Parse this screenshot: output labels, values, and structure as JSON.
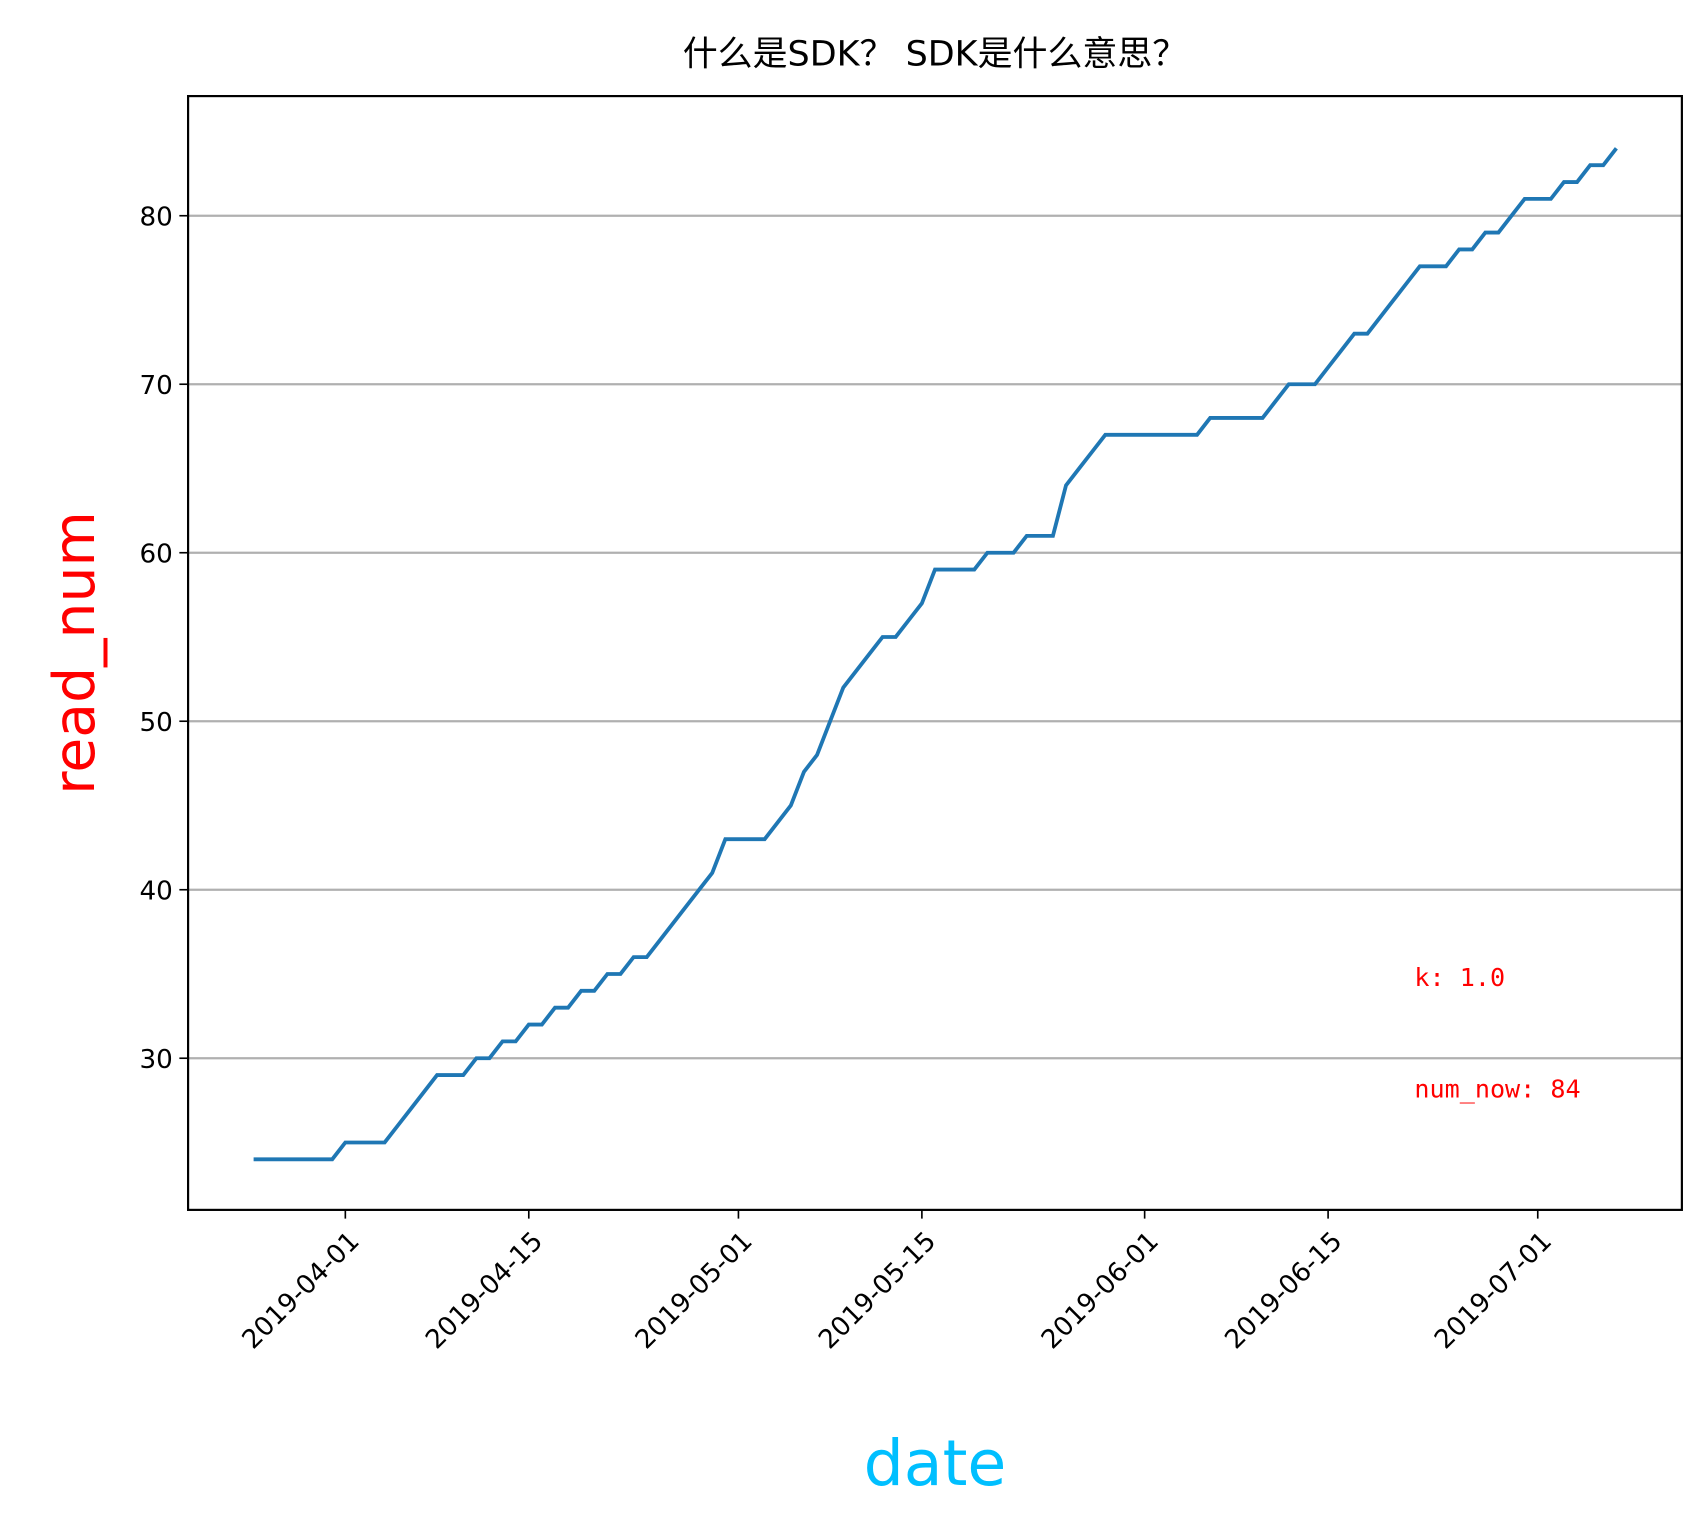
{
  "chart_data": {
    "type": "line",
    "title": "什么是SDK？ SDK是什么意思？",
    "xlabel": "date",
    "ylabel": "read_num",
    "xlabel_color": "#00bfff",
    "ylabel_color": "#ff0000",
    "annotations": [
      "k: 1.0",
      "num_now: 84"
    ],
    "annotation_color": "#ff0000",
    "color": "#1f77b4",
    "grid": "y",
    "xlim": [
      "2019-03-20",
      "2019-07-12"
    ],
    "xticks": [
      "2019-04-01",
      "2019-04-15",
      "2019-05-01",
      "2019-05-15",
      "2019-06-01",
      "2019-06-15",
      "2019-07-01"
    ],
    "ylim": [
      21,
      87.1
    ],
    "yticks": [
      30,
      40,
      50,
      60,
      70,
      80
    ],
    "x": [
      "2019-03-25",
      "2019-03-26",
      "2019-03-27",
      "2019-03-28",
      "2019-03-29",
      "2019-03-30",
      "2019-03-31",
      "2019-04-01",
      "2019-04-02",
      "2019-04-03",
      "2019-04-04",
      "2019-04-05",
      "2019-04-06",
      "2019-04-07",
      "2019-04-08",
      "2019-04-09",
      "2019-04-10",
      "2019-04-11",
      "2019-04-12",
      "2019-04-13",
      "2019-04-14",
      "2019-04-15",
      "2019-04-16",
      "2019-04-17",
      "2019-04-18",
      "2019-04-19",
      "2019-04-20",
      "2019-04-21",
      "2019-04-22",
      "2019-04-23",
      "2019-04-24",
      "2019-04-25",
      "2019-04-26",
      "2019-04-27",
      "2019-04-28",
      "2019-04-29",
      "2019-04-30",
      "2019-05-01",
      "2019-05-02",
      "2019-05-03",
      "2019-05-04",
      "2019-05-05",
      "2019-05-06",
      "2019-05-07",
      "2019-05-08",
      "2019-05-09",
      "2019-05-10",
      "2019-05-11",
      "2019-05-12",
      "2019-05-13",
      "2019-05-14",
      "2019-05-15",
      "2019-05-16",
      "2019-05-17",
      "2019-05-18",
      "2019-05-19",
      "2019-05-20",
      "2019-05-21",
      "2019-05-22",
      "2019-05-23",
      "2019-05-24",
      "2019-05-25",
      "2019-05-26",
      "2019-05-27",
      "2019-05-28",
      "2019-05-29",
      "2019-05-30",
      "2019-05-31",
      "2019-06-01",
      "2019-06-02",
      "2019-06-03",
      "2019-06-04",
      "2019-06-05",
      "2019-06-06",
      "2019-06-07",
      "2019-06-08",
      "2019-06-09",
      "2019-06-10",
      "2019-06-11",
      "2019-06-12",
      "2019-06-13",
      "2019-06-14",
      "2019-06-15",
      "2019-06-16",
      "2019-06-17",
      "2019-06-18",
      "2019-06-19",
      "2019-06-20",
      "2019-06-21",
      "2019-06-22",
      "2019-06-23",
      "2019-06-24",
      "2019-06-25",
      "2019-06-26",
      "2019-06-27",
      "2019-06-28",
      "2019-06-29",
      "2019-06-30",
      "2019-07-01",
      "2019-07-02",
      "2019-07-03",
      "2019-07-04",
      "2019-07-05",
      "2019-07-06",
      "2019-07-07"
    ],
    "values": [
      24,
      24,
      24,
      24,
      24,
      24,
      24,
      25,
      25,
      25,
      25,
      26,
      27,
      28,
      29,
      29,
      29,
      30,
      30,
      31,
      31,
      32,
      32,
      33,
      33,
      34,
      34,
      35,
      35,
      36,
      36,
      37,
      38,
      39,
      40,
      41,
      43,
      43,
      43,
      43,
      44,
      45,
      47,
      48,
      50,
      52,
      53,
      54,
      55,
      55,
      56,
      57,
      59,
      59,
      59,
      59,
      60,
      60,
      60,
      61,
      61,
      61,
      64,
      65,
      66,
      67,
      67,
      67,
      67,
      67,
      67,
      67,
      67,
      68,
      68,
      68,
      68,
      68,
      69,
      70,
      70,
      70,
      71,
      72,
      73,
      73,
      74,
      75,
      76,
      77,
      77,
      77,
      78,
      78,
      79,
      79,
      80,
      81,
      81,
      81,
      82,
      82,
      83,
      83,
      84
    ]
  }
}
